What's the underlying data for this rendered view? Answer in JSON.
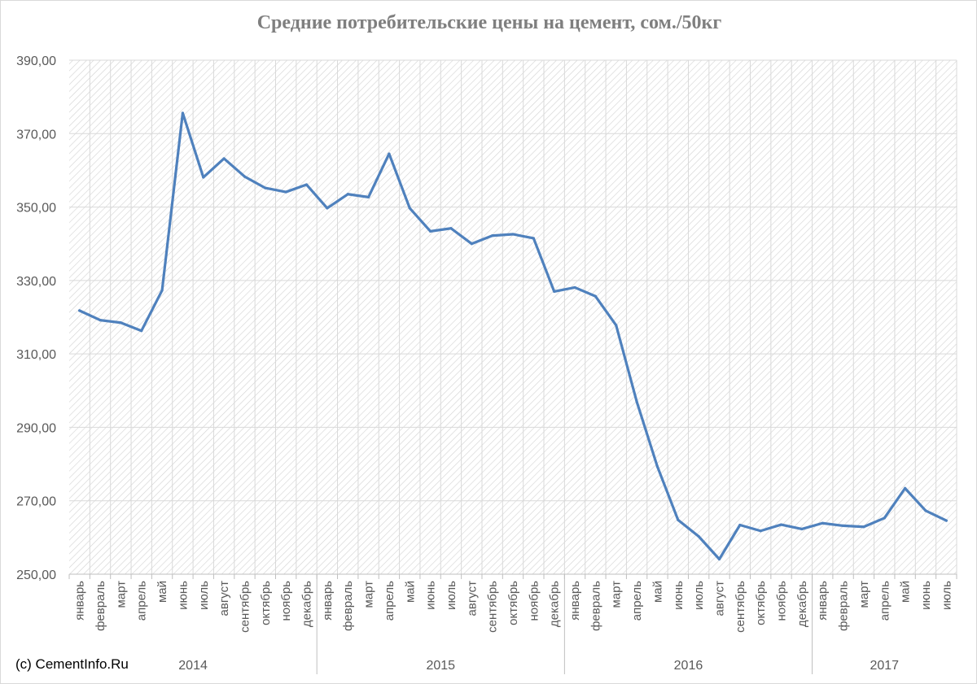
{
  "chart_data": {
    "type": "line",
    "title": "Средние потребительские цены на цемент, сом./50кг",
    "xlabel": "",
    "ylabel": "",
    "ylim": [
      250,
      390
    ],
    "yticks": [
      250,
      270,
      290,
      310,
      330,
      350,
      370,
      390
    ],
    "ytick_labels": [
      "250,00",
      "270,00",
      "290,00",
      "310,00",
      "330,00",
      "350,00",
      "370,00",
      "390,00"
    ],
    "grid": true,
    "legend": "none",
    "groups": [
      {
        "label": "2014",
        "start": 0,
        "end": 11
      },
      {
        "label": "2015",
        "start": 12,
        "end": 23
      },
      {
        "label": "2016",
        "start": 24,
        "end": 35
      },
      {
        "label": "2017",
        "start": 36,
        "end": 42
      }
    ],
    "categories": [
      "январь",
      "февраль",
      "март",
      "апрель",
      "май",
      "июнь",
      "июль",
      "август",
      "сентябрь",
      "октябрь",
      "ноябрь",
      "декабрь",
      "январь",
      "февраль",
      "март",
      "апрель",
      "май",
      "июнь",
      "июль",
      "август",
      "сентябрь",
      "октябрь",
      "ноябрь",
      "декабрь",
      "январь",
      "февраль",
      "март",
      "апрель",
      "май",
      "июнь",
      "июль",
      "август",
      "сентябрь",
      "октябрь",
      "ноябрь",
      "декабрь",
      "январь",
      "февраль",
      "март",
      "апрель",
      "май",
      "июнь",
      "июль"
    ],
    "series": [
      {
        "color": "#4f81bd",
        "values": [
          321.8,
          319.2,
          318.5,
          316.3,
          327.3,
          375.6,
          358.1,
          363.2,
          358.3,
          355.2,
          354.1,
          356.1,
          349.7,
          353.5,
          352.7,
          364.5,
          349.7,
          343.4,
          344.2,
          340.0,
          342.2,
          342.6,
          341.5,
          327.0,
          328.1,
          325.7,
          317.8,
          297.0,
          279.3,
          264.8,
          260.3,
          254.1,
          263.4,
          261.8,
          263.5,
          262.3,
          263.9,
          263.2,
          262.9,
          265.3,
          273.4,
          267.3,
          264.6
        ]
      }
    ]
  },
  "watermark": "(c) CementInfo.Ru"
}
